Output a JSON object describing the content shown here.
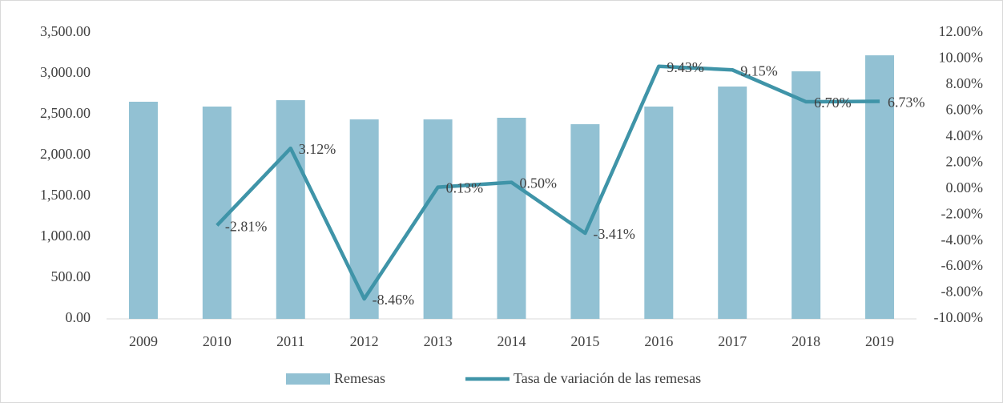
{
  "chart_data": {
    "type": "bar-line",
    "categories": [
      "2009",
      "2010",
      "2011",
      "2012",
      "2013",
      "2014",
      "2015",
      "2016",
      "2017",
      "2018",
      "2019"
    ],
    "series": [
      {
        "name": "Remesas",
        "type": "bar",
        "color": "#92c1d3",
        "values": [
          2657,
          2598,
          2676,
          2441,
          2441,
          2461,
          2382,
          2598,
          2843,
          3029,
          3225
        ]
      },
      {
        "name": "Tasa de variación de las remesas",
        "type": "line",
        "axis": "y2",
        "color": "#3f94a8",
        "values": [
          null,
          -2.81,
          3.12,
          -8.46,
          0.13,
          0.5,
          -3.41,
          9.43,
          9.15,
          6.7,
          6.73
        ],
        "value_labels": [
          null,
          "-2.81%",
          "3.12%",
          "-8.46%",
          "0.13%",
          "0.50%",
          "-3.41%",
          "9.43%",
          "9.15%",
          "6.70%",
          "6.73%"
        ]
      }
    ],
    "ylim": [
      0,
      3500
    ],
    "yticks": [
      {
        "value": 0,
        "label": "0.00"
      },
      {
        "value": 500,
        "label": "500.00"
      },
      {
        "value": 1000,
        "label": "1,000.00"
      },
      {
        "value": 1500,
        "label": "1,500.00"
      },
      {
        "value": 2000,
        "label": "2,000.00"
      },
      {
        "value": 2500,
        "label": "2,500.00"
      },
      {
        "value": 3000,
        "label": "3,000.00"
      },
      {
        "value": 3500,
        "label": "3,500.00"
      }
    ],
    "y2lim": [
      -10,
      12
    ],
    "y2ticks": [
      {
        "value": -10,
        "label": "-10.00%"
      },
      {
        "value": -8,
        "label": "-8.00%"
      },
      {
        "value": -6,
        "label": "-6.00%"
      },
      {
        "value": -4,
        "label": "-4.00%"
      },
      {
        "value": -2,
        "label": "-2.00%"
      },
      {
        "value": 0,
        "label": "0.00%"
      },
      {
        "value": 2,
        "label": "2.00%"
      },
      {
        "value": 4,
        "label": "4.00%"
      },
      {
        "value": 6,
        "label": "6.00%"
      },
      {
        "value": 8,
        "label": "8.00%"
      },
      {
        "value": 10,
        "label": "10.00%"
      },
      {
        "value": 12,
        "label": "12.00%"
      }
    ],
    "legend": "bottom"
  }
}
